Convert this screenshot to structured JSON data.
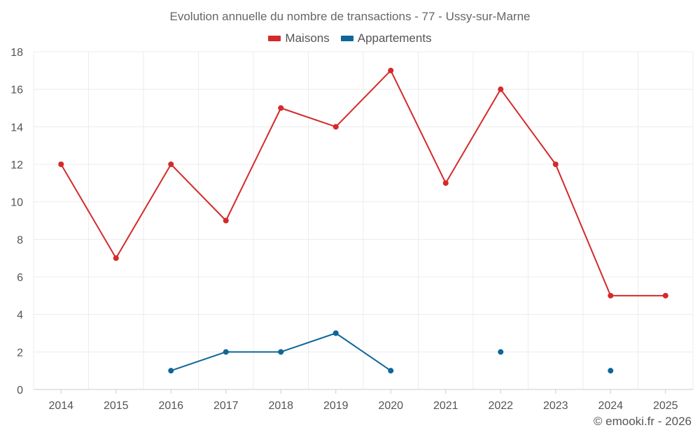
{
  "chart_data": {
    "type": "line",
    "title": "Evolution annuelle du nombre de transactions - 77 - Ussy-sur-Marne",
    "xlabel": "",
    "ylabel": "",
    "categories": [
      "2014",
      "2015",
      "2016",
      "2017",
      "2018",
      "2019",
      "2020",
      "2021",
      "2022",
      "2023",
      "2024",
      "2025"
    ],
    "ylim": [
      0,
      18
    ],
    "yticks": [
      0,
      2,
      4,
      6,
      8,
      10,
      12,
      14,
      16,
      18
    ],
    "grid": true,
    "legend_position": "top-center",
    "series": [
      {
        "name": "Maisons",
        "color": "#d42a2a",
        "values": [
          12,
          7,
          12,
          9,
          15,
          14,
          17,
          11,
          16,
          12,
          5,
          5
        ]
      },
      {
        "name": "Appartements",
        "color": "#0e6699",
        "values": [
          null,
          null,
          1,
          2,
          2,
          3,
          1,
          null,
          2,
          null,
          1,
          null
        ]
      }
    ]
  },
  "credit": "© emooki.fr - 2026"
}
